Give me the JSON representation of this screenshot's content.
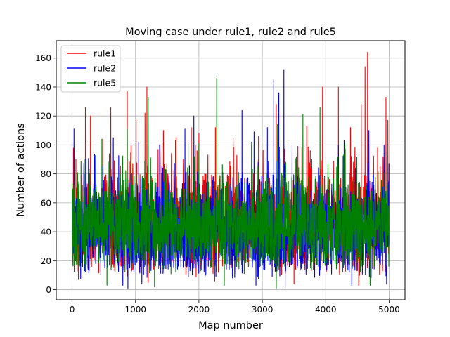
{
  "chart_data": {
    "type": "line",
    "title": "Moving case under rule1, rule2 and rule5",
    "xlabel": "Map number",
    "ylabel": "Number of actions",
    "xlim": [
      -250,
      5250
    ],
    "ylim": [
      -7,
      172
    ],
    "xticks": [
      0,
      1000,
      2000,
      3000,
      4000,
      5000
    ],
    "yticks": [
      0,
      20,
      40,
      60,
      80,
      100,
      120,
      140,
      160
    ],
    "grid": true,
    "legend": "top-left",
    "n_points": 5000,
    "series": [
      {
        "name": "rule1",
        "color": "#ff0000",
        "typical_range": [
          8,
          85
        ],
        "peaks": [
          [
            60,
            90
          ],
          [
            210,
            126
          ],
          [
            290,
            120
          ],
          [
            480,
            104
          ],
          [
            610,
            126
          ],
          [
            870,
            137
          ],
          [
            1010,
            118
          ],
          [
            1150,
            122
          ],
          [
            1180,
            140
          ],
          [
            1440,
            110
          ],
          [
            1640,
            105
          ],
          [
            1880,
            112
          ],
          [
            2000,
            108
          ],
          [
            2260,
            112
          ],
          [
            2540,
            105
          ],
          [
            2940,
            106
          ],
          [
            3220,
            128
          ],
          [
            3700,
            113
          ],
          [
            3950,
            140
          ],
          [
            4200,
            140
          ],
          [
            4390,
            112
          ],
          [
            4560,
            128
          ],
          [
            4620,
            154
          ],
          [
            4660,
            164
          ],
          [
            4950,
            133
          ],
          [
            4980,
            117
          ]
        ],
        "valleys": [
          [
            100,
            7
          ],
          [
            1200,
            5
          ],
          [
            2250,
            6
          ],
          [
            3500,
            4
          ],
          [
            4520,
            3
          ]
        ]
      },
      {
        "name": "rule2",
        "color": "#0000ff",
        "typical_range": [
          6,
          80
        ],
        "peaks": [
          [
            30,
            111
          ],
          [
            650,
            105
          ],
          [
            1050,
            102
          ],
          [
            1380,
            100
          ],
          [
            1780,
            111
          ],
          [
            1920,
            120
          ],
          [
            2680,
            124
          ],
          [
            2870,
            109
          ],
          [
            3080,
            112
          ],
          [
            3180,
            145
          ],
          [
            3260,
            136
          ],
          [
            3340,
            152
          ],
          [
            3470,
            100
          ],
          [
            4200,
            100
          ],
          [
            4290,
            103
          ],
          [
            4680,
            110
          ],
          [
            4920,
            100
          ]
        ],
        "valleys": [
          [
            800,
            3
          ],
          [
            880,
            1
          ],
          [
            1100,
            4
          ],
          [
            2900,
            3
          ],
          [
            3360,
            2
          ],
          [
            4410,
            3
          ],
          [
            4960,
            4
          ]
        ]
      },
      {
        "name": "rule5",
        "color": "#008000",
        "typical_range": [
          10,
          80
        ],
        "peaks": [
          [
            460,
            104
          ],
          [
            870,
            111
          ],
          [
            1200,
            133
          ],
          [
            1630,
            103
          ],
          [
            1830,
            101
          ],
          [
            2000,
            101
          ],
          [
            2280,
            146
          ],
          [
            2830,
            102
          ],
          [
            3240,
            114
          ],
          [
            3640,
            121
          ],
          [
            3910,
            126
          ],
          [
            4300,
            101
          ]
        ],
        "valleys": [
          [
            550,
            3
          ],
          [
            1300,
            2
          ],
          [
            2400,
            3
          ],
          [
            3220,
            1
          ],
          [
            4700,
            3
          ]
        ]
      }
    ]
  }
}
